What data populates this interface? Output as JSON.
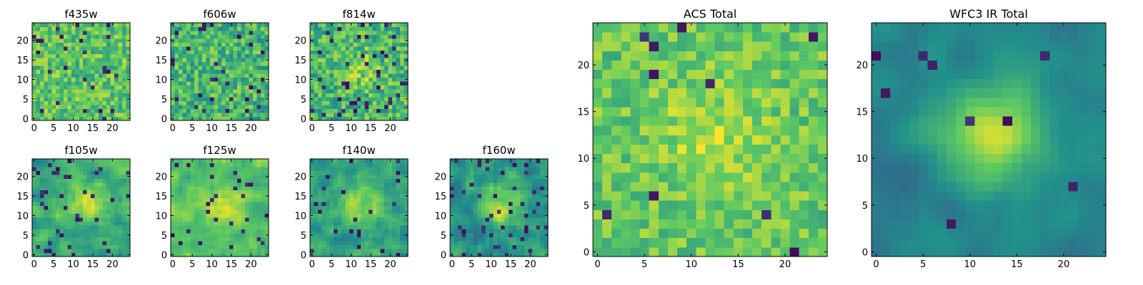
{
  "figure": {
    "colormap": "viridis",
    "colormap_stops": [
      "#440154",
      "#3b528b",
      "#21918c",
      "#5ec962",
      "#fde725"
    ]
  },
  "chart_data": [
    {
      "type": "heatmap",
      "title": "f435w",
      "grid": [
        25,
        25
      ],
      "xlim": [
        0,
        24
      ],
      "ylim": [
        0,
        24
      ],
      "xticks": [
        0,
        5,
        10,
        15,
        20
      ],
      "yticks": [
        0,
        5,
        10,
        15,
        20
      ]
    },
    {
      "type": "heatmap",
      "title": "f606w",
      "grid": [
        25,
        25
      ],
      "xlim": [
        0,
        24
      ],
      "ylim": [
        0,
        24
      ],
      "xticks": [
        0,
        5,
        10,
        15,
        20
      ],
      "yticks": [
        0,
        5,
        10,
        15,
        20
      ]
    },
    {
      "type": "heatmap",
      "title": "f814w",
      "grid": [
        25,
        25
      ],
      "xlim": [
        0,
        24
      ],
      "ylim": [
        0,
        24
      ],
      "xticks": [
        0,
        5,
        10,
        15,
        20
      ],
      "yticks": [
        0,
        5,
        10,
        15,
        20
      ]
    },
    {
      "type": "heatmap",
      "title": "f105w",
      "grid": [
        25,
        25
      ],
      "xlim": [
        0,
        24
      ],
      "ylim": [
        0,
        24
      ],
      "xticks": [
        0,
        5,
        10,
        15,
        20
      ],
      "yticks": [
        0,
        5,
        10,
        15,
        20
      ]
    },
    {
      "type": "heatmap",
      "title": "f125w",
      "grid": [
        25,
        25
      ],
      "xlim": [
        0,
        24
      ],
      "ylim": [
        0,
        24
      ],
      "xticks": [
        0,
        5,
        10,
        15,
        20
      ],
      "yticks": [
        0,
        5,
        10,
        15,
        20
      ]
    },
    {
      "type": "heatmap",
      "title": "f140w",
      "grid": [
        25,
        25
      ],
      "xlim": [
        0,
        24
      ],
      "ylim": [
        0,
        24
      ],
      "xticks": [
        0,
        5,
        10,
        15,
        20
      ],
      "yticks": [
        0,
        5,
        10,
        15,
        20
      ]
    },
    {
      "type": "heatmap",
      "title": "f160w",
      "grid": [
        25,
        25
      ],
      "xlim": [
        0,
        24
      ],
      "ylim": [
        0,
        24
      ],
      "xticks": [
        0,
        5,
        10,
        15,
        20
      ],
      "yticks": [
        0,
        5,
        10,
        15,
        20
      ]
    },
    {
      "type": "heatmap",
      "title": "ACS Total",
      "grid": [
        25,
        25
      ],
      "xlim": [
        0,
        24
      ],
      "ylim": [
        0,
        24
      ],
      "xticks": [
        0,
        5,
        10,
        15,
        20
      ],
      "yticks": [
        0,
        5,
        10,
        15,
        20
      ]
    },
    {
      "type": "heatmap",
      "title": "WFC3 IR Total",
      "grid": [
        25,
        25
      ],
      "xlim": [
        0,
        24
      ],
      "ylim": [
        0,
        24
      ],
      "xticks": [
        0,
        5,
        10,
        15,
        20
      ],
      "yticks": [
        0,
        5,
        10,
        15,
        20
      ]
    }
  ]
}
